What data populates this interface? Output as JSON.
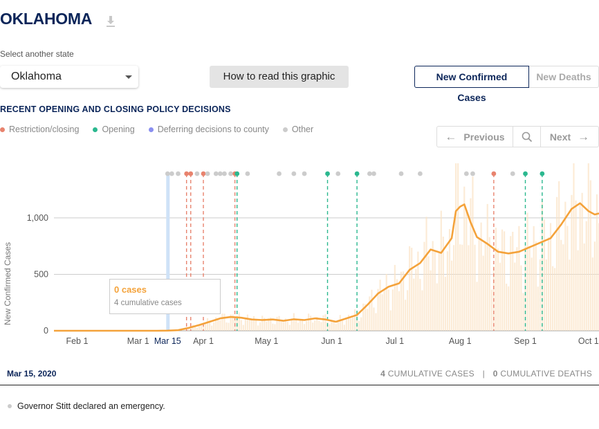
{
  "page": {
    "title": "OKLAHOMA",
    "download_icon": "download-icon",
    "select_label": "Select another state",
    "selected_state": "Oklahoma",
    "how_to_button": "How to read this graphic",
    "toggle": {
      "active": "New Confirmed Cases",
      "inactive": "New Deaths"
    },
    "policy_title": "RECENT OPENING AND CLOSING POLICY DECISIONS",
    "legend": [
      {
        "label": "Restriction/closing",
        "color": "#e8836e"
      },
      {
        "label": "Opening",
        "color": "#2bb88f"
      },
      {
        "label": "Deferring decisions to county",
        "color": "#8a8ff0"
      },
      {
        "label": "Other",
        "color": "#cccccc"
      }
    ],
    "pager": {
      "previous": "Previous",
      "next": "Next",
      "search_icon": "search-icon"
    },
    "tooltip": {
      "cases": "0 cases",
      "cumulative": "4 cumulative cases"
    },
    "footer": {
      "date": "Mar 15, 2020",
      "cum_cases_value": "4",
      "cum_cases_label": "CUMULATIVE CASES",
      "separator": "|",
      "cum_deaths_value": "0",
      "cum_deaths_label": "CUMULATIVE DEATHS"
    },
    "event_text": "Governor Stitt declared an emergency."
  },
  "chart_data": {
    "type": "line",
    "ylabel": "New Confirmed Cases",
    "ylim": [
      0,
      1300
    ],
    "yticks": [
      {
        "value": 0,
        "label": "0"
      },
      {
        "value": 500,
        "label": "500"
      },
      {
        "value": 1000,
        "label": "1,000"
      }
    ],
    "xlim": [
      "2020-01-21",
      "2020-10-06"
    ],
    "xticks": [
      {
        "date": "2020-02-01",
        "label": "Feb 1"
      },
      {
        "date": "2020-03-01",
        "label": "Mar 1"
      },
      {
        "date": "2020-03-15",
        "label": "Mar 15",
        "highlight": true
      },
      {
        "date": "2020-04-01",
        "label": "Apr 1"
      },
      {
        "date": "2020-05-01",
        "label": "May 1"
      },
      {
        "date": "2020-06-01",
        "label": "Jun 1"
      },
      {
        "date": "2020-07-01",
        "label": "Jul 1"
      },
      {
        "date": "2020-08-01",
        "label": "Aug 1"
      },
      {
        "date": "2020-09-01",
        "label": "Sep 1"
      },
      {
        "date": "2020-10-01",
        "label": "Oct 1"
      }
    ],
    "selected_date": "2020-03-15",
    "series": [
      {
        "kind": "moving_average_line",
        "color": "#f4a23a",
        "points": [
          [
            "2020-01-21",
            0
          ],
          [
            "2020-03-10",
            0
          ],
          [
            "2020-03-15",
            1
          ],
          [
            "2020-03-20",
            5
          ],
          [
            "2020-03-25",
            25
          ],
          [
            "2020-03-30",
            50
          ],
          [
            "2020-04-04",
            80
          ],
          [
            "2020-04-09",
            110
          ],
          [
            "2020-04-14",
            122
          ],
          [
            "2020-04-19",
            115
          ],
          [
            "2020-04-24",
            100
          ],
          [
            "2020-04-29",
            95
          ],
          [
            "2020-05-04",
            100
          ],
          [
            "2020-05-09",
            88
          ],
          [
            "2020-05-14",
            102
          ],
          [
            "2020-05-19",
            95
          ],
          [
            "2020-05-24",
            110
          ],
          [
            "2020-05-29",
            100
          ],
          [
            "2020-06-03",
            80
          ],
          [
            "2020-06-08",
            110
          ],
          [
            "2020-06-13",
            140
          ],
          [
            "2020-06-18",
            230
          ],
          [
            "2020-06-23",
            330
          ],
          [
            "2020-06-28",
            390
          ],
          [
            "2020-07-03",
            420
          ],
          [
            "2020-07-08",
            540
          ],
          [
            "2020-07-13",
            600
          ],
          [
            "2020-07-18",
            720
          ],
          [
            "2020-07-23",
            690
          ],
          [
            "2020-07-28",
            820
          ],
          [
            "2020-07-30",
            1060
          ],
          [
            "2020-08-01",
            1100
          ],
          [
            "2020-08-03",
            1120
          ],
          [
            "2020-08-06",
            960
          ],
          [
            "2020-08-09",
            830
          ],
          [
            "2020-08-14",
            770
          ],
          [
            "2020-08-19",
            700
          ],
          [
            "2020-08-24",
            685
          ],
          [
            "2020-08-29",
            700
          ],
          [
            "2020-09-03",
            740
          ],
          [
            "2020-09-08",
            780
          ],
          [
            "2020-09-13",
            820
          ],
          [
            "2020-09-18",
            940
          ],
          [
            "2020-09-23",
            1080
          ],
          [
            "2020-09-27",
            1130
          ],
          [
            "2020-10-01",
            1060
          ],
          [
            "2020-10-04",
            1030
          ],
          [
            "2020-10-06",
            1040
          ]
        ]
      }
    ],
    "policy_events": [
      {
        "date": "2020-03-15",
        "type": "other"
      },
      {
        "date": "2020-03-17",
        "type": "other"
      },
      {
        "date": "2020-03-20",
        "type": "other"
      },
      {
        "date": "2020-03-24",
        "type": "restriction",
        "line": true
      },
      {
        "date": "2020-03-26",
        "type": "restriction",
        "line": true
      },
      {
        "date": "2020-03-29",
        "type": "other"
      },
      {
        "date": "2020-04-01",
        "type": "restriction",
        "line": true
      },
      {
        "date": "2020-04-03",
        "type": "other"
      },
      {
        "date": "2020-04-07",
        "type": "other"
      },
      {
        "date": "2020-04-09",
        "type": "other"
      },
      {
        "date": "2020-04-11",
        "type": "other"
      },
      {
        "date": "2020-04-14",
        "type": "other"
      },
      {
        "date": "2020-04-16",
        "type": "restriction",
        "line": true
      },
      {
        "date": "2020-04-17",
        "type": "opening",
        "line": true
      },
      {
        "date": "2020-04-22",
        "type": "other"
      },
      {
        "date": "2020-05-07",
        "type": "other"
      },
      {
        "date": "2020-05-14",
        "type": "other"
      },
      {
        "date": "2020-05-19",
        "type": "other"
      },
      {
        "date": "2020-05-30",
        "type": "opening",
        "line": true
      },
      {
        "date": "2020-06-04",
        "type": "other"
      },
      {
        "date": "2020-06-13",
        "type": "opening",
        "line": true
      },
      {
        "date": "2020-06-19",
        "type": "other"
      },
      {
        "date": "2020-06-21",
        "type": "other"
      },
      {
        "date": "2020-07-04",
        "type": "other"
      },
      {
        "date": "2020-07-13",
        "type": "other"
      },
      {
        "date": "2020-08-04",
        "type": "other"
      },
      {
        "date": "2020-08-07",
        "type": "other"
      },
      {
        "date": "2020-08-17",
        "type": "restriction",
        "line": true
      },
      {
        "date": "2020-08-26",
        "type": "other"
      },
      {
        "date": "2020-09-01",
        "type": "opening",
        "line": true
      },
      {
        "date": "2020-09-09",
        "type": "opening",
        "line": true
      }
    ]
  }
}
